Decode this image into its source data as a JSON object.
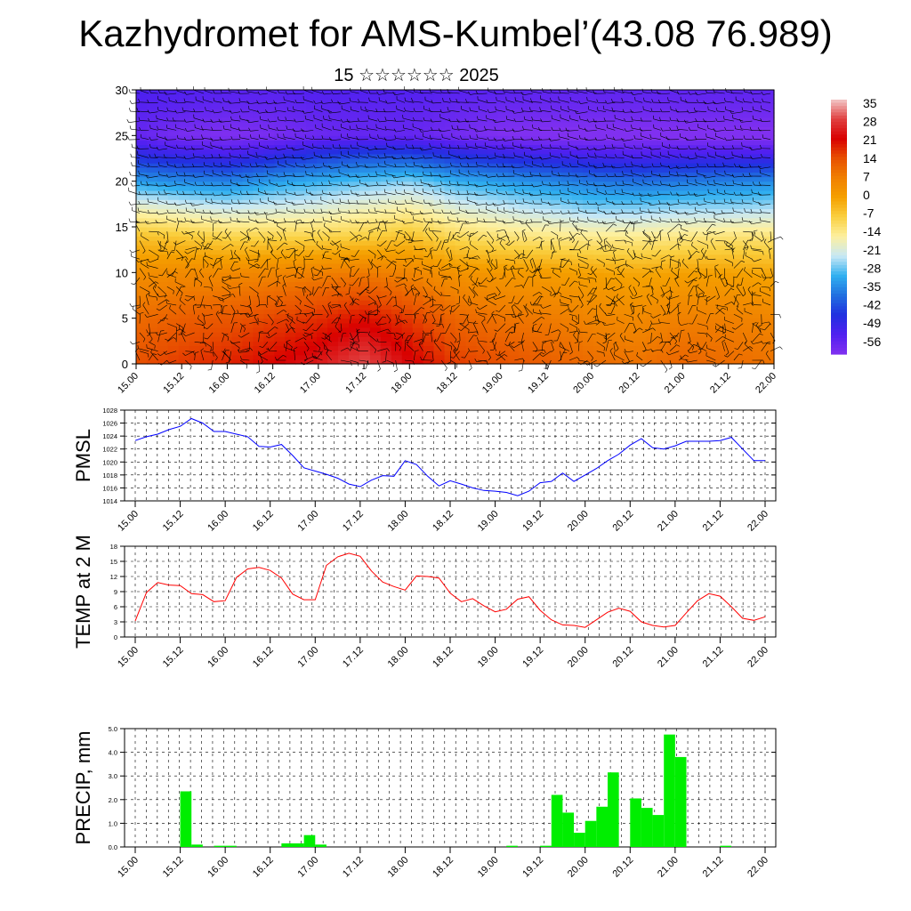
{
  "title": "Kazhydromet for AMS-Kumbel’(43.08 76.989)",
  "subtitle": "15 ☆☆☆☆☆☆ 2025",
  "time_labels": [
    "15.00",
    "15.12",
    "16.00",
    "16.12",
    "17.00",
    "17.12",
    "18.00",
    "18.12",
    "19.00",
    "19.12",
    "20.00",
    "20.12",
    "21.00",
    "21.12",
    "22.00"
  ],
  "colors": {
    "pmsl": "#0000ff",
    "temp": "#ff0000",
    "precip": "#00ee00",
    "wind_barbs": "#000000"
  },
  "chart_data": [
    {
      "type": "heatmap",
      "name": "vertical temperature cross-section with wind barbs",
      "x_ticks": [
        "15.00",
        "15.12",
        "16.00",
        "16.12",
        "17.00",
        "17.12",
        "18.00",
        "18.12",
        "19.00",
        "19.12",
        "20.00",
        "20.12",
        "21.00",
        "21.12",
        "22.00"
      ],
      "ylim": [
        0,
        30
      ],
      "y_ticks": [
        0,
        5,
        10,
        15,
        20,
        25,
        30
      ],
      "colorbar_labels": [
        "35",
        "28",
        "21",
        "14",
        "7",
        "0",
        "-7",
        "-14",
        "-21",
        "-28",
        "-35",
        "-42",
        "-49",
        "-56"
      ],
      "colorbar_colors": [
        "#f2c7c7",
        "#e04040",
        "#d90000",
        "#e85000",
        "#f08000",
        "#f5a000",
        "#fad040",
        "#fdf0a0",
        "#c8e8f5",
        "#30b0f0",
        "#2070e0",
        "#2030e0",
        "#5020f0",
        "#8030f0"
      ],
      "temperature_layers": [
        {
          "height": 0,
          "values": [
            14,
            16,
            18,
            21,
            24,
            29,
            22,
            16,
            14,
            12,
            10,
            9,
            11,
            10,
            9
          ]
        },
        {
          "height": 5,
          "values": [
            10,
            12,
            13,
            15,
            17,
            20,
            16,
            11,
            9,
            8,
            6,
            5,
            7,
            7,
            6
          ]
        },
        {
          "height": 10,
          "values": [
            4,
            5,
            5,
            6,
            7,
            8,
            6,
            3,
            2,
            1,
            0,
            -1,
            0,
            0,
            -1
          ]
        },
        {
          "height": 14,
          "values": [
            -5,
            -6,
            -8,
            -8,
            -8,
            -7,
            -5,
            -9,
            -11,
            -12,
            -13,
            -13,
            -12,
            -11,
            -11
          ]
        },
        {
          "height": 17,
          "values": [
            -16,
            -18,
            -20,
            -19,
            -18,
            -16,
            -14,
            -18,
            -20,
            -22,
            -24,
            -24,
            -23,
            -23,
            -22
          ]
        },
        {
          "height": 20,
          "values": [
            -30,
            -32,
            -33,
            -30,
            -28,
            -26,
            -24,
            -28,
            -30,
            -32,
            -34,
            -35,
            -34,
            -33,
            -32
          ]
        },
        {
          "height": 23,
          "values": [
            -44,
            -46,
            -48,
            -45,
            -42,
            -40,
            -40,
            -43,
            -45,
            -47,
            -48,
            -49,
            -48,
            -48,
            -48
          ]
        },
        {
          "height": 25,
          "values": [
            -52,
            -55,
            -56,
            -55,
            -53,
            -52,
            -52,
            -54,
            -56,
            -57,
            -57,
            -57,
            -57,
            -57,
            -57
          ]
        },
        {
          "height": 28,
          "values": [
            -50,
            -51,
            -52,
            -52,
            -51,
            -51,
            -51,
            -52,
            -53,
            -53,
            -53,
            -53,
            -53,
            -53,
            -53
          ]
        },
        {
          "height": 30,
          "values": [
            -48,
            -49,
            -50,
            -50,
            -49,
            -49,
            -49,
            -50,
            -50,
            -51,
            -51,
            -51,
            -51,
            -51,
            -51
          ]
        }
      ]
    },
    {
      "type": "line",
      "ylabel": "PMSL",
      "ylim": [
        1014,
        1028
      ],
      "y_ticks": [
        1014,
        1016,
        1018,
        1020,
        1022,
        1024,
        1026,
        1028
      ],
      "x_ticks": [
        "15.00",
        "15.12",
        "16.00",
        "16.12",
        "17.00",
        "17.12",
        "18.00",
        "18.12",
        "19.00",
        "19.12",
        "20.00",
        "20.12",
        "21.00",
        "21.12",
        "22.00"
      ],
      "x": [
        0,
        3,
        6,
        9,
        12,
        15,
        18,
        21,
        24,
        27,
        30,
        33,
        36,
        39,
        42,
        45,
        48,
        51,
        54,
        57,
        60,
        63,
        66,
        69,
        72,
        75,
        78,
        81,
        84,
        87,
        90,
        93,
        96,
        99,
        102,
        105,
        108,
        111,
        114,
        117,
        120,
        123,
        126,
        129,
        132,
        135,
        138,
        141,
        144,
        147,
        150,
        153,
        156,
        159,
        162,
        165,
        168
      ],
      "series": [
        {
          "values": [
            1023.3,
            1023.9,
            1024.3,
            1025.0,
            1025.5,
            1026.7,
            1026.0,
            1024.7,
            1024.7,
            1024.3,
            1023.9,
            1022.4,
            1022.3,
            1022.7,
            1021.0,
            1019.1,
            1018.6,
            1018.1,
            1017.5,
            1016.6,
            1016.2,
            1017.2,
            1017.9,
            1017.8,
            1020.2,
            1019.6,
            1017.8,
            1016.3,
            1017.1,
            1016.6,
            1016.0,
            1015.6,
            1015.5,
            1015.3,
            1014.8,
            1015.5,
            1016.8,
            1017.0,
            1018.3,
            1017.0,
            1018.0,
            1019.0,
            1020.2,
            1021.2,
            1022.6,
            1023.6,
            1022.2,
            1022.0,
            1022.5,
            1023.2,
            1023.2,
            1023.2,
            1023.3,
            1023.8,
            1022.0,
            1020.2,
            1020.2
          ]
        }
      ]
    },
    {
      "type": "line",
      "ylabel": "TEMP at 2 M",
      "ylim": [
        0,
        18
      ],
      "y_ticks": [
        0,
        3,
        6,
        9,
        12,
        15,
        18
      ],
      "x_ticks": [
        "15.00",
        "15.12",
        "16.00",
        "16.12",
        "17.00",
        "17.12",
        "18.00",
        "18.12",
        "19.00",
        "19.12",
        "20.00",
        "20.12",
        "21.00",
        "21.12",
        "22.00"
      ],
      "x": [
        0,
        3,
        6,
        9,
        12,
        15,
        18,
        21,
        24,
        27,
        30,
        33,
        36,
        39,
        42,
        45,
        48,
        51,
        54,
        57,
        60,
        63,
        66,
        69,
        72,
        75,
        78,
        81,
        84,
        87,
        90,
        93,
        96,
        99,
        102,
        105,
        108,
        111,
        114,
        117,
        120,
        123,
        126,
        129,
        132,
        135,
        138,
        141,
        144,
        147,
        150,
        153,
        156,
        159,
        162,
        165,
        168
      ],
      "series": [
        {
          "values": [
            3.2,
            8.8,
            10.8,
            10.3,
            10.2,
            8.6,
            8.4,
            7.0,
            7.2,
            11.8,
            13.5,
            13.8,
            13.2,
            11.7,
            8.5,
            7.4,
            7.4,
            14.2,
            15.9,
            16.6,
            16.0,
            13.1,
            10.9,
            10.0,
            9.3,
            12.1,
            12.0,
            11.7,
            8.7,
            7.0,
            7.6,
            6.2,
            5.0,
            5.5,
            7.5,
            8.0,
            5.3,
            3.4,
            2.4,
            2.3,
            1.9,
            3.4,
            4.9,
            5.7,
            5.1,
            3.0,
            2.3,
            2.0,
            2.3,
            4.8,
            7.2,
            8.6,
            8.1,
            6.0,
            3.7,
            3.3,
            4.0
          ]
        }
      ]
    },
    {
      "type": "bar",
      "ylabel": "PRECIP, mm",
      "ylim": [
        0,
        5.0
      ],
      "y_ticks": [
        "0.0",
        "1.0",
        "2.0",
        "3.0",
        "4.0",
        "5.0"
      ],
      "x_ticks": [
        "15.00",
        "15.12",
        "16.00",
        "16.12",
        "17.00",
        "17.12",
        "18.00",
        "18.12",
        "19.00",
        "19.12",
        "20.00",
        "20.12",
        "21.00",
        "21.12",
        "22.00"
      ],
      "x": [
        0,
        3,
        6,
        9,
        12,
        15,
        18,
        21,
        24,
        27,
        30,
        33,
        36,
        39,
        42,
        45,
        48,
        51,
        54,
        57,
        60,
        63,
        66,
        69,
        72,
        75,
        78,
        81,
        84,
        87,
        90,
        93,
        96,
        99,
        102,
        105,
        108,
        111,
        114,
        117,
        120,
        123,
        126,
        129,
        132,
        135,
        138,
        141,
        144,
        147,
        150,
        153,
        156,
        159,
        162,
        165
      ],
      "series": [
        {
          "values": [
            0,
            0,
            0,
            0,
            2.35,
            0.1,
            0,
            0.05,
            0.05,
            0,
            0,
            0,
            0,
            0.15,
            0.15,
            0.5,
            0.1,
            0,
            0,
            0,
            0,
            0,
            0,
            0,
            0,
            0,
            0,
            0,
            0,
            0,
            0,
            0,
            0,
            0.05,
            0,
            0,
            0.05,
            2.2,
            1.45,
            0.6,
            1.1,
            1.7,
            3.15,
            0,
            2.05,
            1.65,
            1.35,
            4.75,
            3.8,
            0,
            0,
            0,
            0.05,
            0,
            0,
            0
          ]
        }
      ]
    }
  ]
}
